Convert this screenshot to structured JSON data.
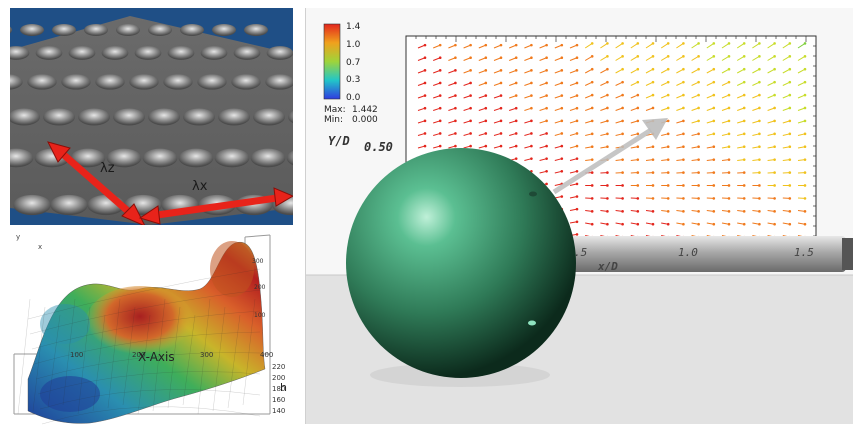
{
  "top_left": {
    "lambda_z": "λz",
    "lambda_x": "λx",
    "colors": {
      "background": "#1f4f86",
      "arrow": "#e8231a"
    }
  },
  "bottom_left": {
    "axis_x_label": "X-Axis",
    "axis_h_label": "h",
    "x_ticks": [
      "100",
      "200",
      "300",
      "400"
    ],
    "h_ticks": [
      "220",
      "200",
      "180",
      "160",
      "140"
    ],
    "z_ticks": [
      "300",
      "200",
      "100"
    ],
    "corner_labels": [
      "y",
      "x"
    ]
  },
  "right_panel": {
    "legend": {
      "ticks": [
        "1.4",
        "1.0",
        "0.7",
        "0.3",
        "0.0"
      ],
      "max_label": "Max:",
      "max_value": "1.442",
      "min_label": "Min:",
      "min_value": "0.000"
    },
    "y_axis_label": "Y/D",
    "y_tick": "0.50",
    "x_axis_label": "x/D",
    "x_ticks": [
      ".5",
      "1.0",
      "1.5"
    ],
    "colors": {
      "sphere": "#3f9a72",
      "rod": "#bfbfbf",
      "arrow": "#bdbdbd"
    }
  }
}
